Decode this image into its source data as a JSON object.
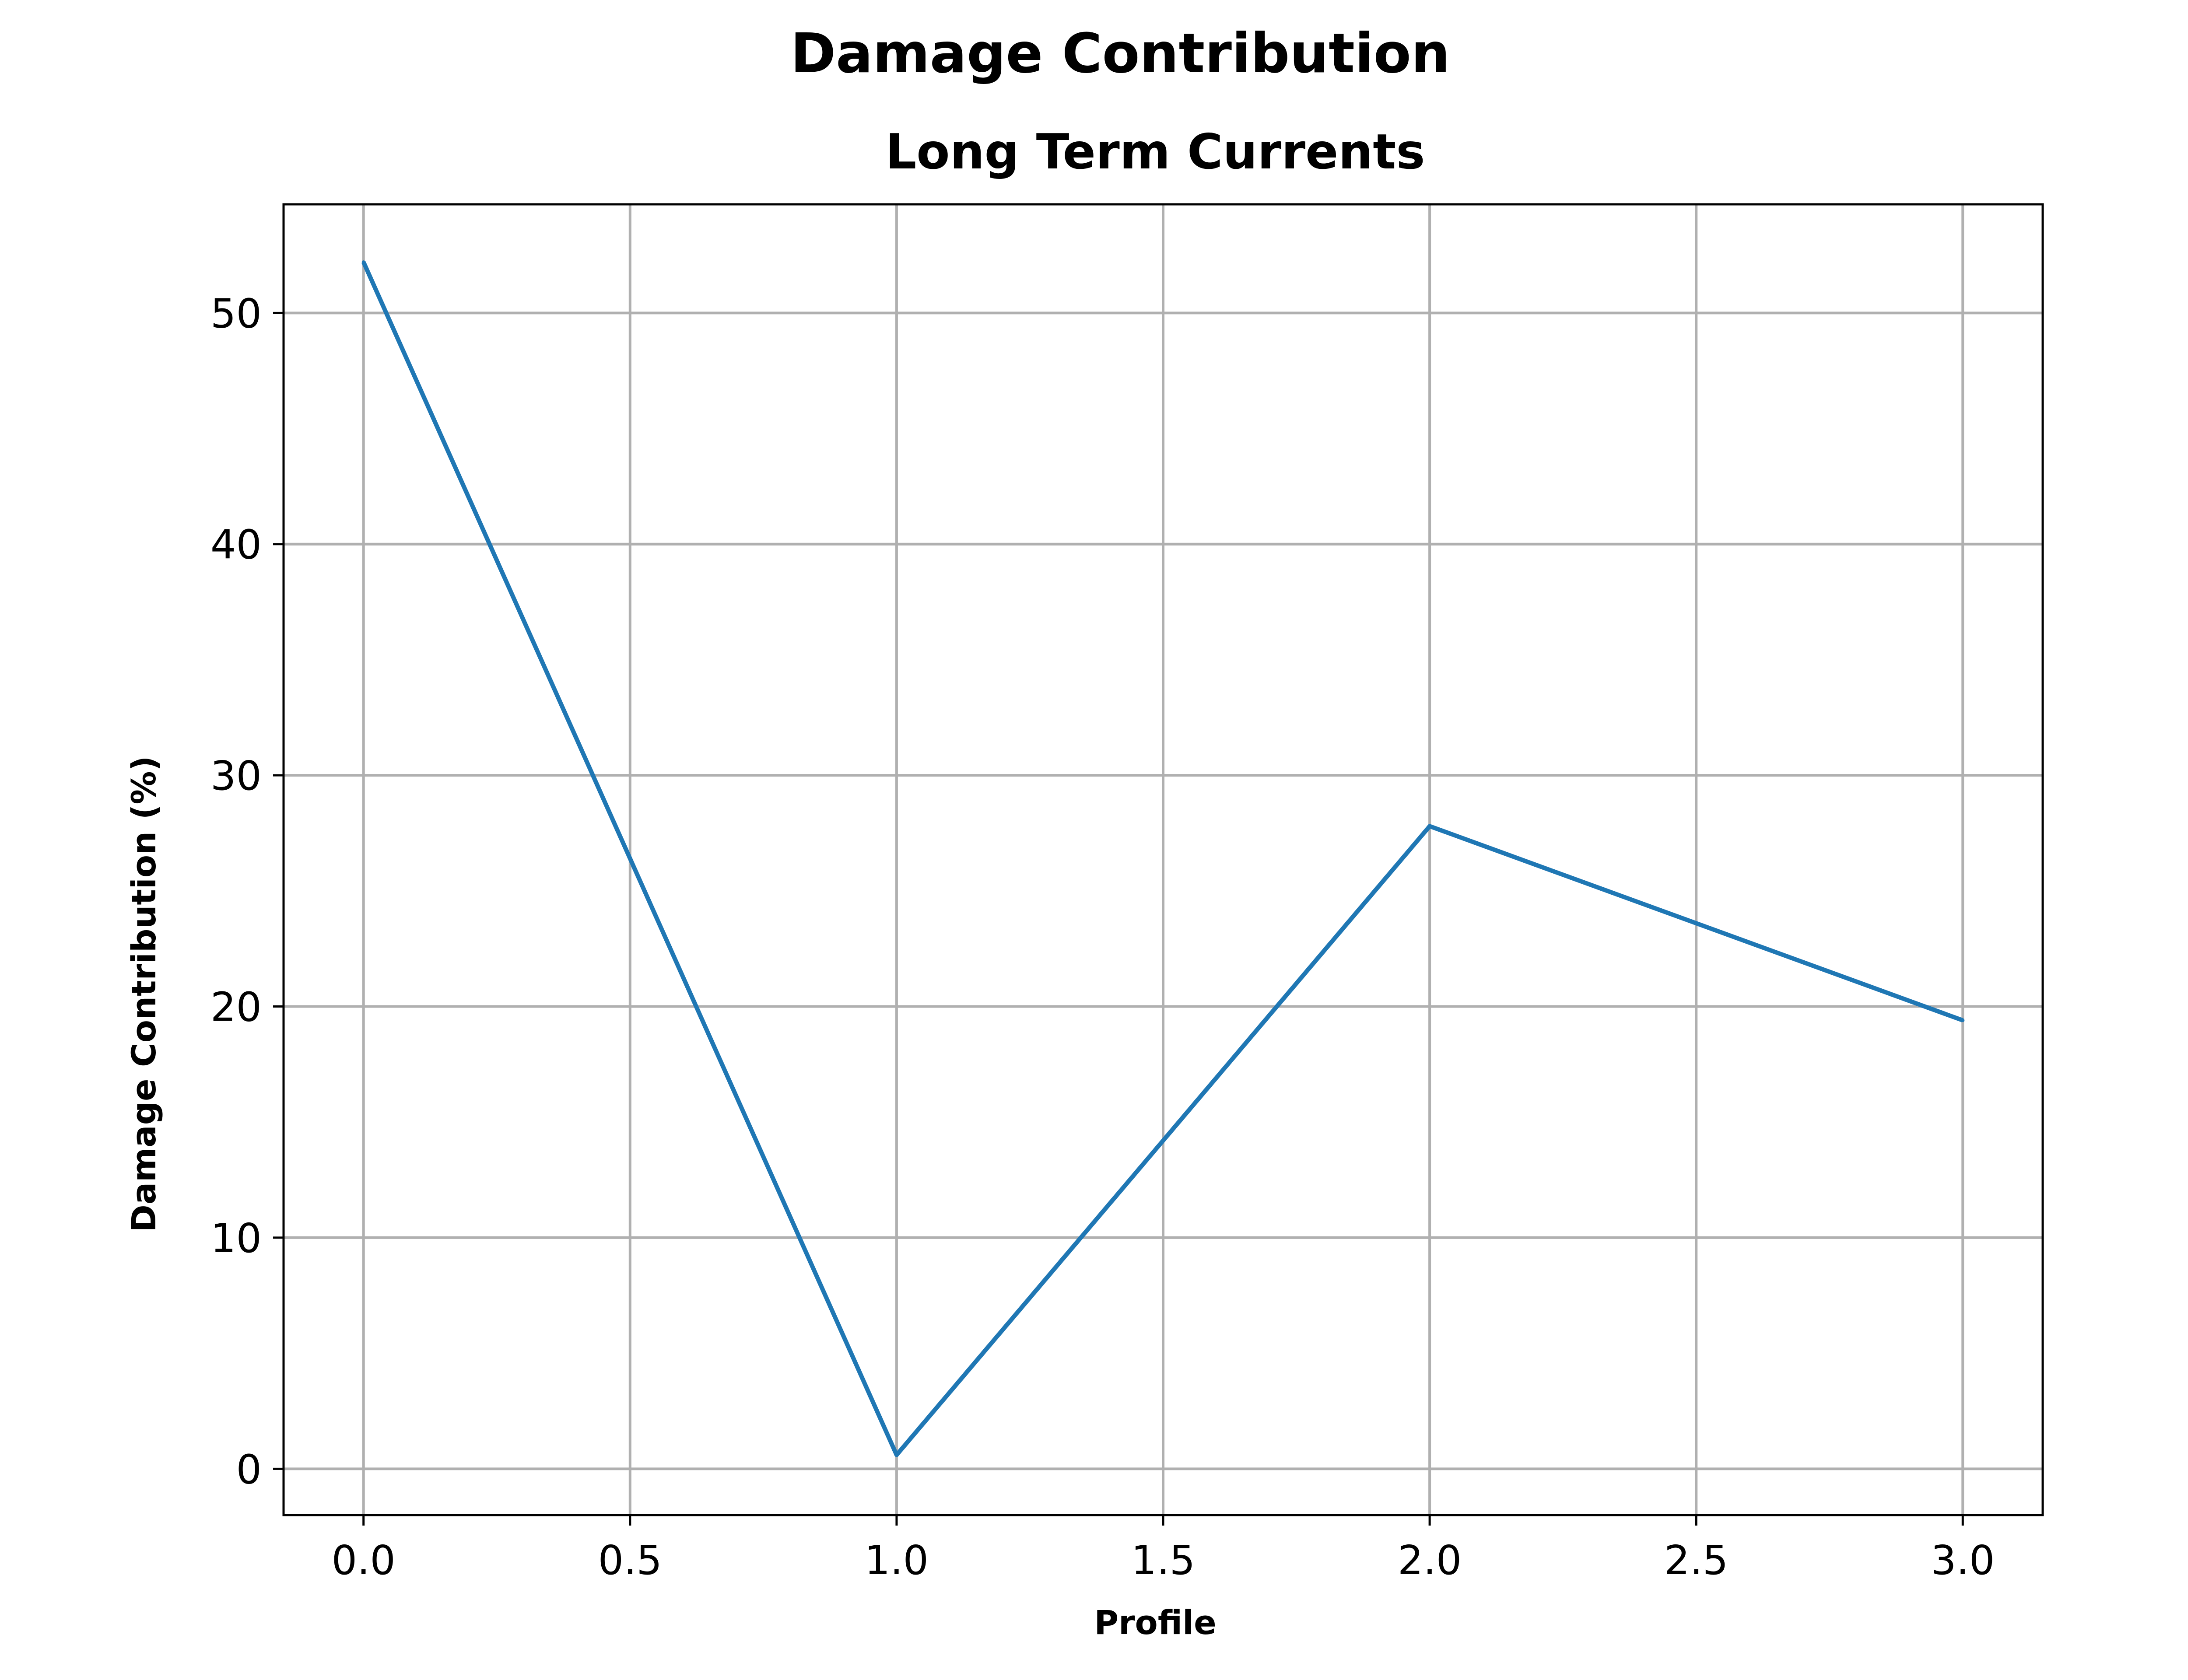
{
  "chart_data": {
    "type": "line",
    "title": "Damage Contribution",
    "subtitle": "Long Term Currents",
    "xlabel": "Profile",
    "ylabel": "Damage Contribution (%)",
    "xlim": [
      -0.15,
      3.15
    ],
    "ylim": [
      -2,
      54.7
    ],
    "xticks": [
      0.0,
      0.5,
      1.0,
      1.5,
      2.0,
      2.5,
      3.0
    ],
    "xtick_labels": [
      "0.0",
      "0.5",
      "1.0",
      "1.5",
      "2.0",
      "2.5",
      "3.0"
    ],
    "yticks": [
      0,
      10,
      20,
      30,
      40,
      50
    ],
    "ytick_labels": [
      "0",
      "10",
      "20",
      "30",
      "40",
      "50"
    ],
    "grid": true,
    "series": [
      {
        "color": "#1f77b4",
        "x": [
          0,
          1,
          2,
          3
        ],
        "values": [
          52.2,
          0.6,
          27.8,
          19.4
        ]
      }
    ]
  }
}
